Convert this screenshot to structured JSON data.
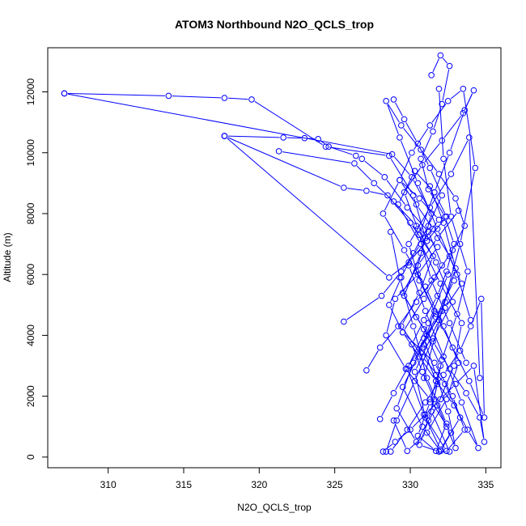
{
  "chart_data": {
    "type": "line",
    "title": "ATOM3 Northbound N2O_QCLS_trop",
    "xlabel": "N2O_QCLS_trop",
    "ylabel": "Altitude (m)",
    "xlim": [
      306,
      336
    ],
    "ylim": [
      -350,
      13450
    ],
    "xticks": [
      "310",
      "315",
      "320",
      "325",
      "330",
      "335"
    ],
    "yticks": [
      "0",
      "2000",
      "4000",
      "6000",
      "8000",
      "10000",
      "12000"
    ],
    "series_color": "#0000ff",
    "grid": false,
    "legend": "none",
    "series": [
      {
        "x": [
          307.1,
          314.0,
          317.7,
          319.5,
          324.4,
          328.6,
          330.2,
          331.0,
          330.4,
          331.6,
          330.8,
          331.8,
          331.2,
          330.6,
          331.9,
          332.6,
          331.4,
          332.1,
          333.1,
          333.8,
          332.7,
          332.2,
          331.9
        ],
        "y": [
          11950,
          11870,
          11800,
          11750,
          10200,
          9900,
          8600,
          7200,
          6100,
          4800,
          3600,
          2400,
          1200,
          400,
          180,
          180,
          1500,
          3200,
          4700,
          6100,
          7900,
          9800,
          12100
        ]
      },
      {
        "x": [
          307.1,
          328.8,
          330.1,
          331.4,
          330.7,
          329.6,
          330.9,
          332.0,
          331.3,
          330.5,
          331.7,
          332.4,
          331.1,
          330.2,
          329.3,
          328.7
        ],
        "y": [
          11950,
          9950,
          9200,
          8000,
          6700,
          5300,
          4200,
          3000,
          1800,
          700,
          200,
          1100,
          2600,
          4300,
          5900,
          7400
        ]
      },
      {
        "x": [
          317.7,
          321.6,
          323.0,
          323.9,
          324.6,
          326.4,
          326.8,
          328.3,
          329.8,
          331.2,
          332.1,
          330.9,
          329.5,
          331.6,
          332.8,
          333.6,
          332.4,
          331.0,
          330.3,
          331.9,
          333.0,
          332.2,
          331.3
        ],
        "y": [
          10550,
          10500,
          10480,
          10450,
          10200,
          9900,
          9800,
          9200,
          8200,
          7400,
          6300,
          5200,
          4100,
          3100,
          2000,
          900,
          200,
          1300,
          2800,
          4500,
          6200,
          7700,
          8900
        ]
      },
      {
        "x": [
          317.7,
          325.6,
          327.1,
          328.5,
          330.0,
          331.5,
          330.6,
          329.4,
          330.8,
          332.3,
          333.3,
          332.0,
          330.9,
          329.8,
          331.2,
          332.5
        ],
        "y": [
          10550,
          8850,
          8750,
          8600,
          7700,
          6600,
          5400,
          4300,
          3300,
          2400,
          1300,
          250,
          1400,
          2900,
          4400,
          6000
        ]
      },
      {
        "x": [
          317.7,
          328.6,
          329.9,
          331.1,
          332.4,
          331.6,
          330.3,
          329.2,
          330.7,
          332.0,
          333.4,
          332.9,
          331.8,
          330.4,
          329.1,
          330.2,
          331.7,
          332.9
        ],
        "y": [
          10550,
          5900,
          6400,
          7100,
          7900,
          8700,
          9400,
          8300,
          7000,
          5700,
          4400,
          3000,
          1700,
          500,
          1600,
          3100,
          4600,
          5800
        ]
      },
      {
        "x": [
          321.3,
          326.3,
          327.6,
          328.9,
          330.4,
          331.8,
          330.5,
          329.0,
          328.4,
          329.7,
          331.3,
          332.7,
          332.0,
          330.8,
          329.5,
          330.9,
          332.3
        ],
        "y": [
          10050,
          9650,
          9000,
          8400,
          7600,
          6900,
          6000,
          5200,
          4000,
          2900,
          1900,
          800,
          200,
          1000,
          2300,
          3700,
          5100
        ]
      },
      {
        "x": [
          325.6,
          328.1,
          329.4,
          330.7,
          331.9,
          330.6,
          329.3,
          328.2,
          329.6,
          331.0,
          332.2,
          333.2,
          332.4,
          331.1,
          329.8,
          328.9
        ],
        "y": [
          4450,
          5300,
          6100,
          7000,
          7800,
          8500,
          9100,
          8000,
          6800,
          5600,
          4300,
          3100,
          1900,
          800,
          200,
          1200
        ]
      },
      {
        "x": [
          328.4,
          329.1,
          330.3,
          331.5,
          332.8,
          331.7,
          330.5,
          329.6,
          330.8,
          332.1,
          333.5,
          334.2,
          333.6,
          332.6,
          331.6,
          330.6,
          331.4,
          332.6,
          333.7
        ],
        "y": [
          180,
          1200,
          2500,
          3900,
          5100,
          6400,
          7500,
          8700,
          9600,
          10400,
          11300,
          12050,
          11400,
          10000,
          8700,
          7300,
          5800,
          4400,
          3100
        ]
      },
      {
        "x": [
          328.7,
          329.8,
          331.0,
          332.2,
          333.3,
          334.0,
          334.7,
          334.9,
          333.9,
          332.8,
          331.7,
          330.6,
          329.9,
          331.3,
          332.7,
          333.9,
          334.6
        ],
        "y": [
          180,
          900,
          1800,
          2700,
          3500,
          4300,
          5200,
          1300,
          2500,
          3600,
          4700,
          5800,
          7000,
          8200,
          9300,
          10500,
          2600
        ]
      },
      {
        "x": [
          331.4,
          332.0,
          332.6,
          332.1,
          331.5,
          330.7,
          331.2,
          332.3,
          332.9,
          332.4,
          331.8,
          330.9,
          330.1,
          330.8,
          331.6,
          332.4,
          333.0,
          332.5,
          331.7,
          330.9
        ],
        "y": [
          12550,
          13200,
          12850,
          11600,
          10700,
          9800,
          8800,
          7900,
          7000,
          6100,
          5300,
          4500,
          3700,
          2800,
          1900,
          1000,
          300,
          1500,
          2700,
          3900
        ]
      },
      {
        "x": [
          328.9,
          329.6,
          330.5,
          331.3,
          332.1,
          331.2,
          330.2,
          329.4,
          328.6,
          329.5,
          330.6,
          331.7,
          332.9,
          333.8,
          334.5,
          333.4,
          332.2,
          331.0,
          329.9
        ],
        "y": [
          11750,
          11100,
          10300,
          9500,
          8600,
          7600,
          6700,
          5900,
          5000,
          4100,
          3300,
          2500,
          1700,
          900,
          300,
          1800,
          3300,
          4800,
          6300
        ]
      },
      {
        "x": [
          327.1,
          328.0,
          329.2,
          330.4,
          331.6,
          332.8,
          333.6,
          333.0,
          331.9,
          330.7,
          329.4,
          328.4,
          329.3,
          330.5,
          331.8,
          333.1,
          334.0
        ],
        "y": [
          2850,
          3600,
          4300,
          5100,
          5900,
          6800,
          7600,
          8500,
          9300,
          10100,
          10900,
          11700,
          10500,
          9000,
          7500,
          6000,
          4500
        ]
      },
      {
        "x": [
          328.0,
          328.9,
          329.9,
          331.1,
          332.3,
          333.4,
          332.6,
          331.5,
          330.4,
          329.3,
          330.1,
          331.3,
          332.5,
          333.5,
          334.3,
          333.3,
          332.1,
          330.9
        ],
        "y": [
          1250,
          2100,
          3000,
          4000,
          4900,
          5700,
          6600,
          7500,
          8300,
          9100,
          10000,
          10900,
          11700,
          12100,
          9500,
          7000,
          4800,
          2600
        ]
      },
      {
        "x": [
          328.2,
          329.0,
          330.0,
          331.0,
          332.0,
          333.0,
          334.2,
          334.9,
          334.6,
          333.7,
          332.6,
          331.5,
          330.4,
          329.5,
          330.5,
          331.8,
          333.2
        ],
        "y": [
          180,
          500,
          900,
          1400,
          1900,
          2400,
          3000,
          500,
          1300,
          2100,
          2900,
          3800,
          4600,
          5400,
          6300,
          7200,
          8100
        ]
      }
    ]
  }
}
